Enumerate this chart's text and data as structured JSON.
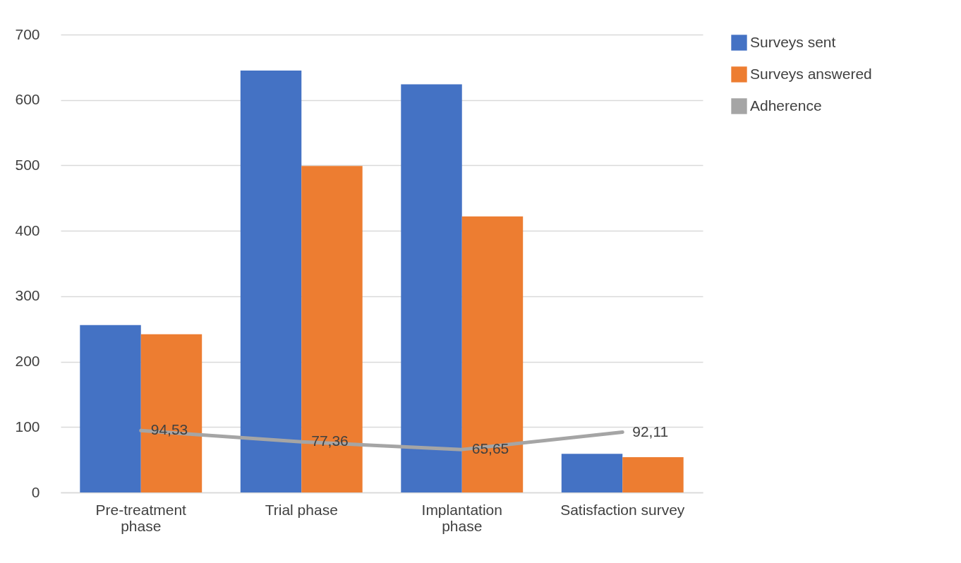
{
  "chart_data": {
    "type": "bar",
    "categories": [
      "Pre-treatment phase",
      "Trial phase",
      "Implantation phase",
      "Satisfaction survey"
    ],
    "series": [
      {
        "name": "Surveys sent",
        "color": "#4472c4",
        "values": [
          256,
          645,
          624,
          59
        ]
      },
      {
        "name": "Surveys answered",
        "color": "#ed7d31",
        "values": [
          242,
          499,
          422,
          54
        ]
      },
      {
        "name": "Adherence",
        "type": "line",
        "color": "#a5a5a5",
        "values": [
          94.53,
          77.36,
          65.65,
          92.11
        ],
        "value_labels": [
          "94,53",
          "77,36",
          "65,65",
          "92,11"
        ]
      }
    ],
    "ylim": [
      0,
      700
    ],
    "yticks": [
      0,
      100,
      200,
      300,
      400,
      500,
      600,
      700
    ],
    "grid": "y",
    "legend": "right"
  }
}
